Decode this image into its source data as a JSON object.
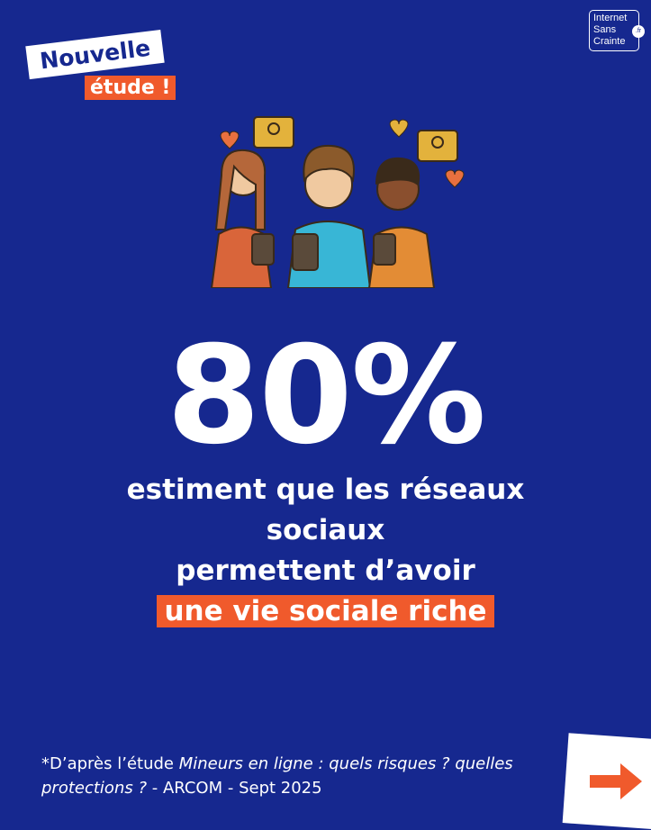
{
  "badge": {
    "line1": "Nouvelle",
    "line2": "étude !"
  },
  "logo": {
    "line1": "Internet",
    "line2": "Sans",
    "line3": "Crainte",
    "suffix": ".fr"
  },
  "stat": {
    "value": "80%",
    "line1": "estiment que les réseaux",
    "line2": "sociaux",
    "line3": "permettent d’avoir",
    "highlight": "une vie sociale riche"
  },
  "footnote": {
    "prefix": "*D’après l’étude ",
    "title": "Mineurs en ligne : quels risques ? quelles protections ?",
    "suffix": " - ARCOM - Sept 2025"
  },
  "colors": {
    "background": "#16288f",
    "accent": "#f05a2c"
  },
  "icons": {
    "next": "arrow-right-icon"
  }
}
